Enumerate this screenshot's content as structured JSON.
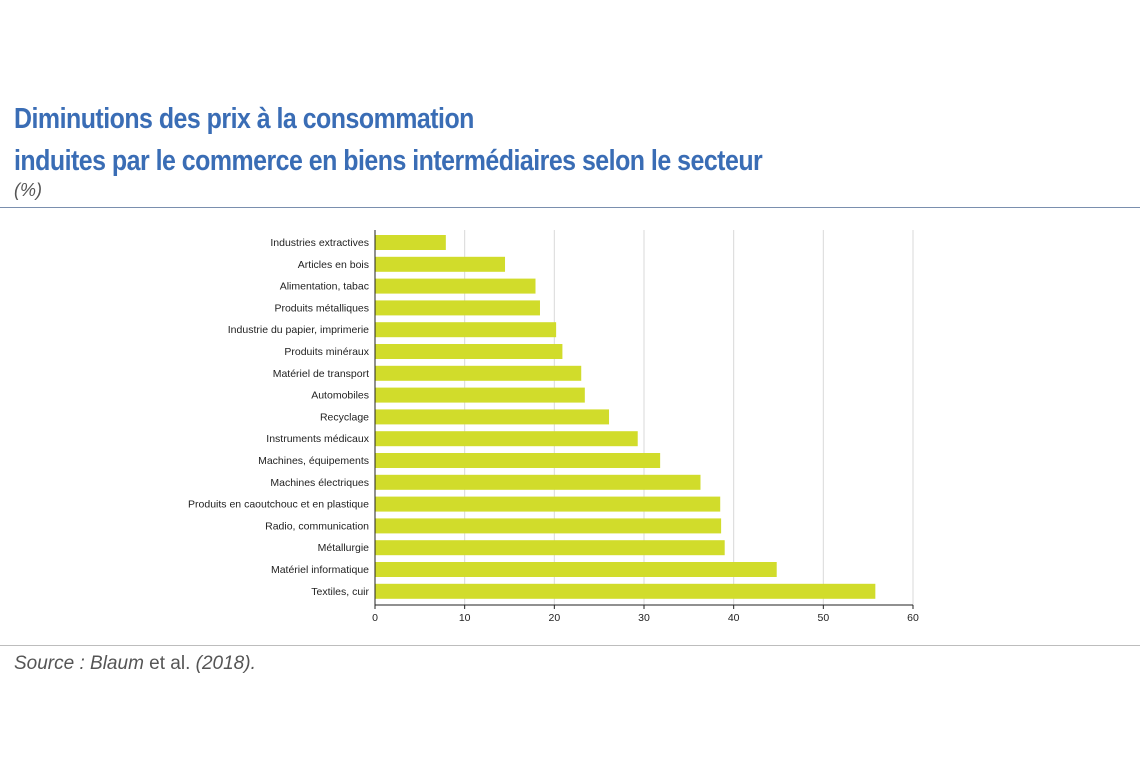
{
  "header": {
    "title_line1": "Diminutions des prix à la consommation",
    "title_line2": "induites par le commerce en biens intermédiaires selon le secteur",
    "unit": "(%)"
  },
  "footer": {
    "source_prefix": "Source : Blaum",
    "source_etal": " et al. ",
    "source_year": "(2018)."
  },
  "chart_data": {
    "type": "bar",
    "orientation": "horizontal",
    "categories": [
      "Industries extractives",
      "Articles en bois",
      "Alimentation, tabac",
      "Produits métalliques",
      "Industrie du papier, imprimerie",
      "Produits minéraux",
      "Matériel de transport",
      "Automobiles",
      "Recyclage",
      "Instruments médicaux",
      "Machines, équipements",
      "Machines électriques",
      "Produits en caoutchouc et en plastique",
      "Radio, communication",
      "Métallurgie",
      "Matériel informatique",
      "Textiles, cuir"
    ],
    "values": [
      7.9,
      14.5,
      17.9,
      18.4,
      20.2,
      20.9,
      23.0,
      23.4,
      26.1,
      29.3,
      31.8,
      36.3,
      38.5,
      38.6,
      39.0,
      44.8,
      55.8
    ],
    "xlim": [
      0,
      60
    ],
    "xticks": [
      0,
      10,
      20,
      30,
      40,
      50,
      60
    ],
    "grid": "vertical",
    "bar_color": "#d1dc2b",
    "grid_color": "#d9d9d9",
    "title_color": "#3a6db5"
  }
}
